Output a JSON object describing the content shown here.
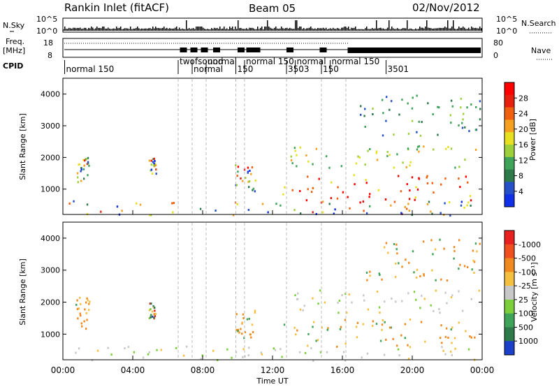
{
  "header": {
    "station": "Rankin Inlet (fitACF)",
    "beam": "Beam 05",
    "date": "02/Nov/2012"
  },
  "panels": {
    "nsky": {
      "label": "N.Sky",
      "right_label": "N.Search",
      "ticks_left": [
        "10^5",
        "10^0"
      ],
      "ticks_right": [
        "10^5",
        "10^0"
      ]
    },
    "freq": {
      "label_line1": "Freq.",
      "label_line2": "[MHz]",
      "ticks_left": [
        "18",
        "8"
      ],
      "ticks_right": [
        "80",
        "0"
      ],
      "right_label": "Nave"
    },
    "cpid": {
      "label": "CPID",
      "programs": [
        "normal 150",
        "twofsound",
        "normal",
        "normal",
        "150",
        "normal 150",
        "3503",
        "normal",
        "150",
        "normal 150",
        "3501"
      ]
    }
  },
  "chart_data": [
    {
      "type": "heatmap",
      "title": "",
      "xlabel": "",
      "ylabel": "Slant Range [km]",
      "x_ticks": [
        "00:00",
        "04:00",
        "08:00",
        "12:00",
        "16:00",
        "20:00",
        "00:00"
      ],
      "y_ticks": [
        1000,
        2000,
        3000,
        4000
      ],
      "ylim": [
        200,
        4500
      ],
      "xlim_hours": [
        0,
        24
      ],
      "colorbar": {
        "label": "Power [dB]",
        "ticks": [
          4,
          8,
          12,
          16,
          20,
          24,
          28
        ],
        "colors": [
          "#1030e8",
          "#2650c8",
          "#2f7a4a",
          "#3fa35a",
          "#9dd03a",
          "#e6e020",
          "#f5a020",
          "#f06010",
          "#e82010",
          "#ff0000"
        ]
      },
      "echo_regions": [
        {
          "t0": 0.3,
          "t1": 24.0,
          "r0": 200,
          "r1": 650,
          "dominant": "low-mid"
        },
        {
          "t0": 0.7,
          "t1": 1.5,
          "r0": 1200,
          "r1": 2200,
          "dominant": "mixed"
        },
        {
          "t0": 4.9,
          "t1": 5.3,
          "r0": 1500,
          "r1": 2000,
          "dominant": "mixed"
        },
        {
          "t0": 9.8,
          "t1": 11.0,
          "r0": 900,
          "r1": 1800,
          "dominant": "mixed"
        },
        {
          "t0": 12.5,
          "t1": 24.0,
          "r0": 600,
          "r1": 1500,
          "dominant": "high"
        },
        {
          "t0": 13.0,
          "t1": 24.0,
          "r0": 1700,
          "r1": 2400,
          "dominant": "mid"
        },
        {
          "t0": 17.0,
          "t1": 24.0,
          "r0": 2700,
          "r1": 4000,
          "dominant": "sparse"
        }
      ]
    },
    {
      "type": "heatmap",
      "title": "",
      "xlabel": "Time UT",
      "ylabel": "Slant Range [km]",
      "x_ticks": [
        "00:00",
        "04:00",
        "08:00",
        "12:00",
        "16:00",
        "20:00",
        "00:00"
      ],
      "y_ticks": [
        1000,
        2000,
        3000,
        4000
      ],
      "ylim": [
        200,
        4500
      ],
      "xlim_hours": [
        0,
        24
      ],
      "colorbar": {
        "label": "Velocity [m s⁻¹]",
        "ticks": [
          1000,
          500,
          100,
          25,
          -25,
          -100,
          -500,
          -1000
        ],
        "colors": [
          "#1a3fc8",
          "#2f7a4a",
          "#3fa35a",
          "#7ccf3a",
          "#c8c8c8",
          "#f5c040",
          "#f08a20",
          "#f05020",
          "#e82020"
        ]
      },
      "echo_regions": [
        {
          "t0": 0.3,
          "t1": 24.0,
          "r0": 200,
          "r1": 650,
          "dominant": "near-zero"
        },
        {
          "t0": 0.7,
          "t1": 1.5,
          "r0": 1200,
          "r1": 2200,
          "dominant": "negative"
        },
        {
          "t0": 4.9,
          "t1": 5.3,
          "r0": 1500,
          "r1": 2000,
          "dominant": "mixed"
        },
        {
          "t0": 9.8,
          "t1": 11.0,
          "r0": 900,
          "r1": 1800,
          "dominant": "negative"
        },
        {
          "t0": 12.5,
          "t1": 24.0,
          "r0": 600,
          "r1": 1500,
          "dominant": "negative"
        },
        {
          "t0": 13.0,
          "t1": 24.0,
          "r0": 1700,
          "r1": 2400,
          "dominant": "near-zero"
        },
        {
          "t0": 17.0,
          "t1": 24.0,
          "r0": 2700,
          "r1": 4000,
          "dominant": "negative"
        }
      ]
    }
  ]
}
